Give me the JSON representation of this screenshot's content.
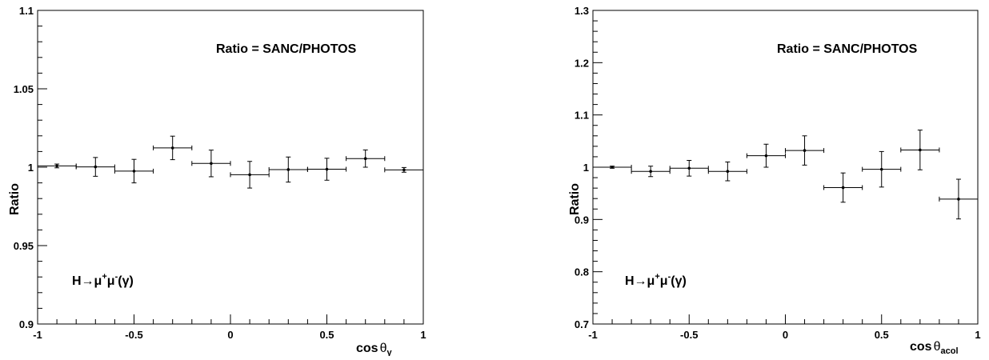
{
  "chart_data": [
    {
      "type": "scatter",
      "style": "histogram-points-with-error-bars",
      "annotation": "Ratio = SANC/PHOTOS",
      "process_label": {
        "pre": "H→μ",
        "sup1": "+",
        "mid": "μ",
        "sup2": "-",
        "post": "(γ)"
      },
      "ylabel": "Ratio",
      "xlabel": {
        "pre": "cos",
        "theta": "θ",
        "sub": "γ"
      },
      "xlim": [
        -1,
        1
      ],
      "ylim": [
        0.9,
        1.1
      ],
      "xticks": [
        {
          "v": -1,
          "label": "-1"
        },
        {
          "v": -0.5,
          "label": "-0.5"
        },
        {
          "v": 0,
          "label": "0"
        },
        {
          "v": 0.5,
          "label": "0.5"
        },
        {
          "v": 1,
          "label": "1"
        }
      ],
      "yticks": [
        {
          "v": 0.9,
          "label": "0.9"
        },
        {
          "v": 0.95,
          "label": "0.95"
        },
        {
          "v": 1.0,
          "label": "1"
        },
        {
          "v": 1.05,
          "label": "1.05"
        },
        {
          "v": 1.1,
          "label": "1.1"
        }
      ],
      "minor_x_step": 0.1,
      "minor_y_step": 0.01,
      "grid": false,
      "bin_half_width": 0.1,
      "points": [
        {
          "x": -0.9,
          "y": 1.0008,
          "err": 0.0012
        },
        {
          "x": -0.7,
          "y": 1.0002,
          "err": 0.006
        },
        {
          "x": -0.5,
          "y": 0.9975,
          "err": 0.0075
        },
        {
          "x": -0.3,
          "y": 1.0123,
          "err": 0.0075
        },
        {
          "x": -0.1,
          "y": 1.0024,
          "err": 0.0085
        },
        {
          "x": 0.1,
          "y": 0.9952,
          "err": 0.0085
        },
        {
          "x": 0.3,
          "y": 0.9985,
          "err": 0.008
        },
        {
          "x": 0.5,
          "y": 0.9987,
          "err": 0.007
        },
        {
          "x": 0.7,
          "y": 1.0055,
          "err": 0.0055
        },
        {
          "x": 0.9,
          "y": 0.9983,
          "err": 0.0015
        }
      ]
    },
    {
      "type": "scatter",
      "style": "histogram-points-with-error-bars",
      "annotation": "Ratio = SANC/PHOTOS",
      "process_label": {
        "pre": "H→μ",
        "sup1": "+",
        "mid": "μ",
        "sup2": "-",
        "post": "(γ)"
      },
      "ylabel": "Ratio",
      "xlabel": {
        "pre": "cos",
        "theta": "θ",
        "sub": "acol"
      },
      "xlim": [
        -1,
        1
      ],
      "ylim": [
        0.7,
        1.3
      ],
      "xticks": [
        {
          "v": -1,
          "label": "-1"
        },
        {
          "v": -0.5,
          "label": "-0.5"
        },
        {
          "v": 0,
          "label": "0"
        },
        {
          "v": 0.5,
          "label": "0.5"
        },
        {
          "v": 1,
          "label": "1"
        }
      ],
      "yticks": [
        {
          "v": 0.7,
          "label": "0.7"
        },
        {
          "v": 0.8,
          "label": "0.8"
        },
        {
          "v": 0.9,
          "label": "0.9"
        },
        {
          "v": 1.0,
          "label": "1"
        },
        {
          "v": 1.1,
          "label": "1.1"
        },
        {
          "v": 1.2,
          "label": "1.2"
        },
        {
          "v": 1.3,
          "label": "1.3"
        }
      ],
      "minor_x_step": 0.1,
      "minor_y_step": 0.02,
      "grid": false,
      "bin_half_width": 0.1,
      "points": [
        {
          "x": -0.9,
          "y": 1.0,
          "err": 0.002
        },
        {
          "x": -0.7,
          "y": 0.992,
          "err": 0.01
        },
        {
          "x": -0.5,
          "y": 0.998,
          "err": 0.015
        },
        {
          "x": -0.3,
          "y": 0.992,
          "err": 0.018
        },
        {
          "x": -0.1,
          "y": 1.022,
          "err": 0.022
        },
        {
          "x": 0.1,
          "y": 1.032,
          "err": 0.028
        },
        {
          "x": 0.3,
          "y": 0.961,
          "err": 0.028
        },
        {
          "x": 0.5,
          "y": 0.996,
          "err": 0.034
        },
        {
          "x": 0.7,
          "y": 1.033,
          "err": 0.038
        },
        {
          "x": 0.9,
          "y": 0.939,
          "err": 0.038
        }
      ]
    }
  ]
}
